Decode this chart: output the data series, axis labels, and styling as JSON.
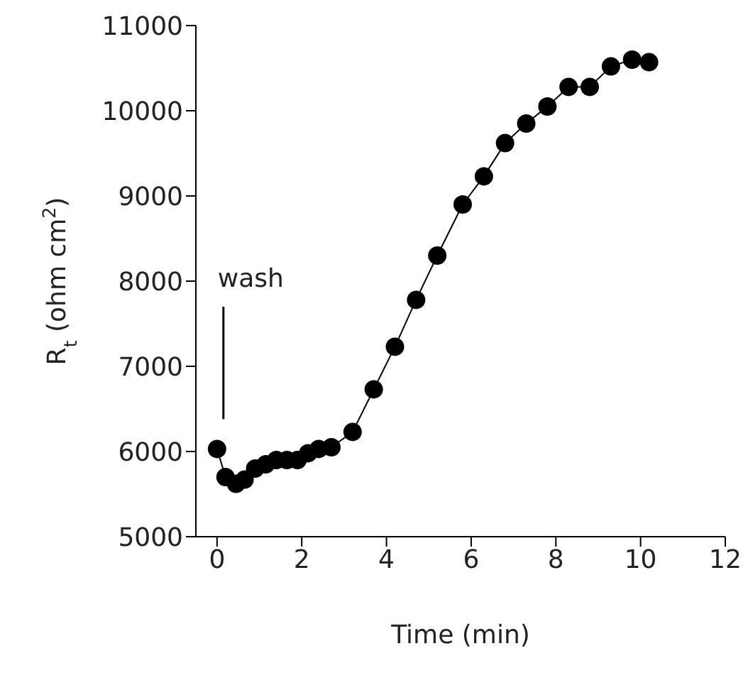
{
  "chart_data": {
    "type": "line",
    "xlabel": "Time (min)",
    "ylabel": "R$_{t}$ (ohm cm$^{2}$)",
    "x": [
      0,
      0.2,
      0.45,
      0.65,
      0.9,
      1.15,
      1.4,
      1.65,
      1.9,
      2.15,
      2.4,
      2.7,
      3.2,
      3.7,
      4.2,
      4.7,
      5.2,
      5.8,
      6.3,
      6.8,
      7.3,
      7.8,
      8.3,
      8.8,
      9.3,
      9.8,
      10.2
    ],
    "series": [
      {
        "color": "#000000",
        "values": [
          6030,
          5700,
          5620,
          5670,
          5800,
          5850,
          5900,
          5900,
          5900,
          5980,
          6030,
          6050,
          6230,
          6730,
          7230,
          7780,
          8300,
          8900,
          9230,
          9620,
          9850,
          10050,
          10280,
          10280,
          10520,
          10600,
          10570
        ]
      }
    ],
    "xlim": [
      -0.5,
      12
    ],
    "xticks": [
      0,
      2,
      4,
      6,
      8,
      10,
      12
    ],
    "ylim": [
      5000,
      11000
    ],
    "yticks": [
      5000,
      6000,
      7000,
      8000,
      9000,
      10000,
      11000
    ],
    "marker": "circle",
    "line_style": "solid",
    "grid": false,
    "legend": false,
    "ref_lines": [
      {
        "axis": "x",
        "value": 0.15,
        "label": "wash",
        "color": "#000000",
        "line_style": "solid"
      }
    ]
  }
}
